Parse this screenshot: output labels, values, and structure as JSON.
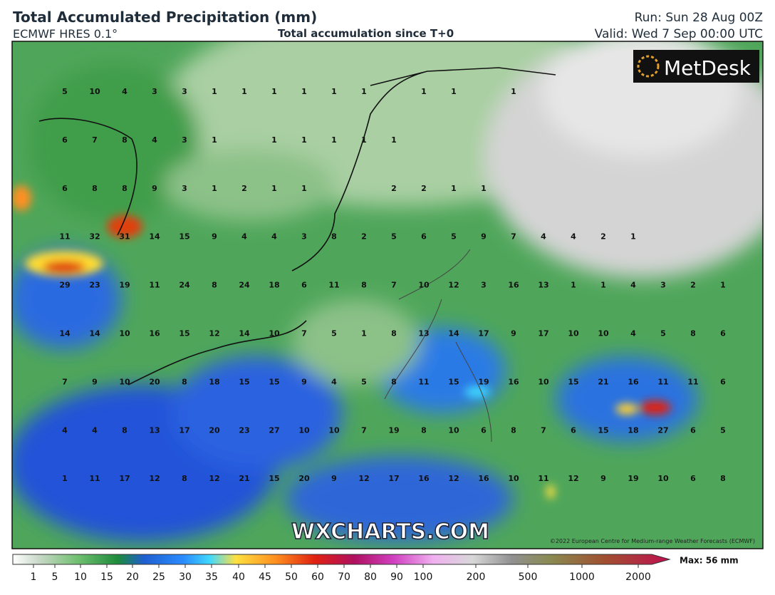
{
  "header": {
    "title": "Total Accumulated Precipitation (mm)",
    "model": "ECMWF HRES 0.1°",
    "subtitle": "Total accumulation since T+0",
    "run": "Run: Sun 28 Aug 00Z",
    "valid": "Valid: Wed 7 Sep 00:00 UTC"
  },
  "logo": "MetDesk",
  "watermark": "WXCHARTS.COM",
  "copyright": "©2022 European Centre for Medium-range Weather Forecasts (ECMWF)",
  "grid": {
    "rows": [
      [
        5,
        10,
        4,
        3,
        3,
        1,
        1,
        1,
        1,
        1,
        1,
        null,
        1,
        1,
        null,
        1,
        null,
        null,
        null,
        null,
        null,
        null,
        null
      ],
      [
        6,
        7,
        8,
        4,
        3,
        1,
        null,
        1,
        1,
        1,
        1,
        1,
        null,
        null,
        null,
        null,
        null,
        null,
        null,
        null,
        null,
        null,
        null
      ],
      [
        6,
        8,
        8,
        9,
        3,
        1,
        2,
        1,
        1,
        null,
        null,
        2,
        2,
        1,
        1,
        null,
        null,
        null,
        null,
        null,
        null,
        null,
        null
      ],
      [
        11,
        32,
        31,
        14,
        15,
        9,
        4,
        4,
        3,
        8,
        2,
        5,
        6,
        5,
        9,
        7,
        4,
        4,
        2,
        1,
        null,
        null,
        null
      ],
      [
        29,
        23,
        19,
        11,
        24,
        8,
        24,
        18,
        6,
        11,
        8,
        7,
        10,
        12,
        3,
        16,
        13,
        1,
        1,
        4,
        3,
        2,
        1
      ],
      [
        14,
        14,
        10,
        16,
        15,
        12,
        14,
        10,
        7,
        5,
        1,
        8,
        13,
        14,
        17,
        9,
        17,
        10,
        10,
        4,
        5,
        8,
        6
      ],
      [
        7,
        9,
        10,
        20,
        8,
        18,
        15,
        15,
        9,
        4,
        5,
        8,
        11,
        15,
        19,
        16,
        10,
        15,
        21,
        16,
        11,
        11,
        6
      ],
      [
        4,
        4,
        8,
        13,
        17,
        20,
        23,
        27,
        10,
        10,
        7,
        19,
        8,
        10,
        6,
        8,
        7,
        6,
        15,
        18,
        27,
        6,
        5
      ],
      [
        1,
        11,
        17,
        12,
        8,
        12,
        21,
        15,
        20,
        9,
        12,
        17,
        16,
        12,
        16,
        10,
        11,
        12,
        9,
        19,
        10,
        6,
        8
      ]
    ]
  },
  "legend": {
    "ticks": [
      1,
      5,
      10,
      15,
      20,
      25,
      30,
      35,
      40,
      45,
      50,
      60,
      70,
      80,
      90,
      100,
      200,
      500,
      1000,
      2000
    ],
    "max_label": "Max: 56 mm"
  }
}
